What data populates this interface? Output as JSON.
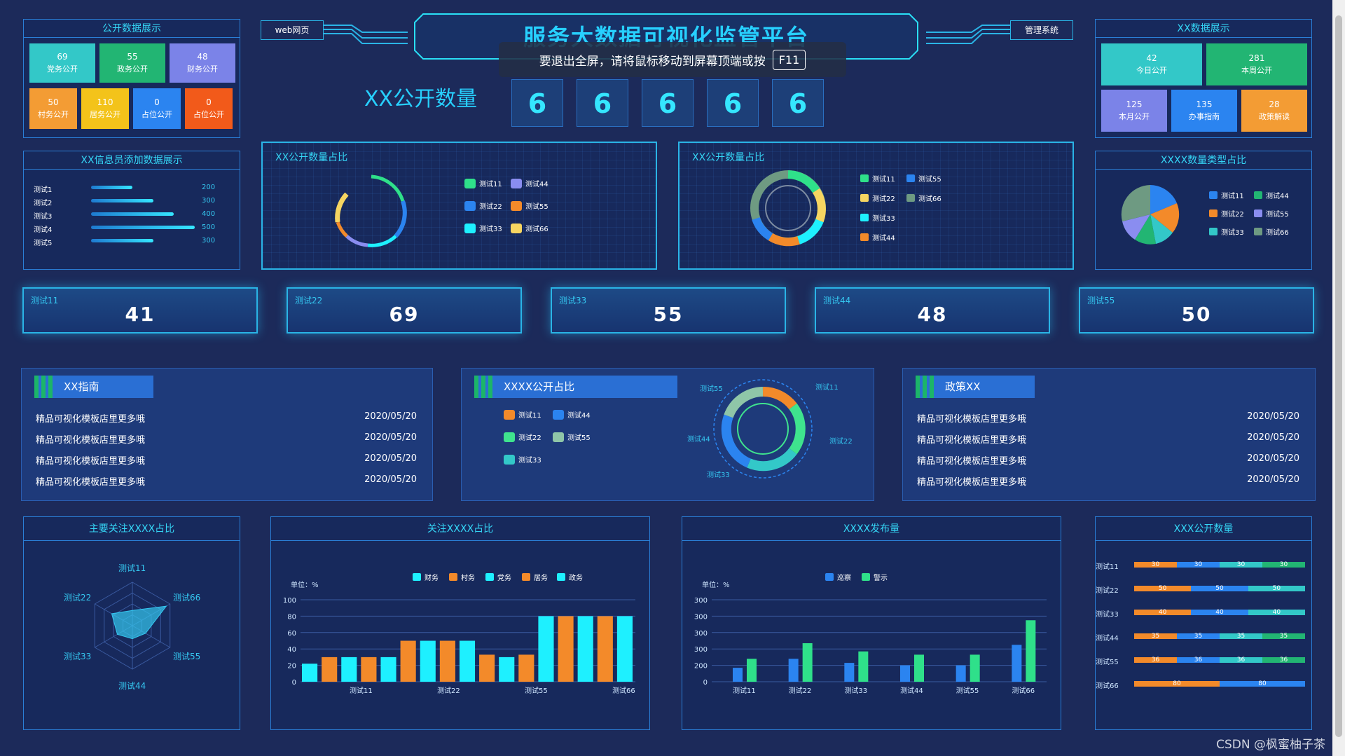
{
  "header": {
    "title": "服务大数据可视化监管平台",
    "left_link": "web网页",
    "right_link": "管理系统",
    "fullscreen_notice": "要退出全屏，请将鼠标移动到屏幕顶端或按",
    "fullscreen_key": "F11"
  },
  "public_count": {
    "label": "XX公开数量",
    "digits": [
      "6",
      "6",
      "6",
      "6",
      "6"
    ]
  },
  "public_data_panel": {
    "title": "公开数据展示",
    "tiles": [
      {
        "value": "69",
        "label": "党务公开",
        "color": "#33c8c8"
      },
      {
        "value": "55",
        "label": "政务公开",
        "color": "#22b573"
      },
      {
        "value": "48",
        "label": "财务公开",
        "color": "#7b83e8"
      },
      {
        "value": "50",
        "label": "村务公开",
        "color": "#f39c34"
      },
      {
        "value": "110",
        "label": "居务公开",
        "color": "#f3c31a"
      },
      {
        "value": "0",
        "label": "占位公开",
        "color": "#2b84f0"
      },
      {
        "value": "0",
        "label": "占位公开",
        "color": "#f25a1a"
      }
    ]
  },
  "xx_data_panel": {
    "title": "XX数据展示",
    "tiles": [
      {
        "value": "42",
        "label": "今日公开",
        "color": "#33c8c8"
      },
      {
        "value": "281",
        "label": "本周公开",
        "color": "#22b573"
      },
      {
        "value": "125",
        "label": "本月公开",
        "color": "#7b83e8"
      },
      {
        "value": "135",
        "label": "办事指南",
        "color": "#2b84f0"
      },
      {
        "value": "28",
        "label": "政策解读",
        "color": "#f39c34"
      }
    ]
  },
  "admin_panel": {
    "title": "XX信息员添加数据展示",
    "rows": [
      {
        "name": "测试1",
        "value": "200",
        "fraction": 0.4
      },
      {
        "name": "测试2",
        "value": "300",
        "fraction": 0.6
      },
      {
        "name": "测试3",
        "value": "400",
        "fraction": 0.8
      },
      {
        "name": "测试4",
        "value": "500",
        "fraction": 1.0
      },
      {
        "name": "测试5",
        "value": "300",
        "fraction": 0.6
      }
    ]
  },
  "ratio_panel_1": {
    "title": "XX公开数量占比",
    "legend": [
      {
        "name": "测试11",
        "color": "#2fe08a"
      },
      {
        "name": "测试44",
        "color": "#8a8df0"
      },
      {
        "name": "测试22",
        "color": "#2b84f0"
      },
      {
        "name": "测试55",
        "color": "#f38a2a"
      },
      {
        "name": "测试33",
        "color": "#1ef0ff"
      },
      {
        "name": "测试66",
        "color": "#f6d561"
      }
    ]
  },
  "ratio_panel_2": {
    "title": "XX公开数量占比",
    "legend": [
      {
        "name": "测试11",
        "color": "#2fe08a"
      },
      {
        "name": "测试55",
        "color": "#2b84f0"
      },
      {
        "name": "测试22",
        "color": "#f6d561"
      },
      {
        "name": "测试66",
        "color": "#6e9a82"
      },
      {
        "name": "测试33",
        "color": "#1ef0ff"
      },
      {
        "name": "测试44",
        "color": "#f38a2a"
      }
    ]
  },
  "type_panel": {
    "title": "XXXX数量类型占比",
    "legend": [
      {
        "name": "测试11",
        "color": "#2b84f0"
      },
      {
        "name": "测试44",
        "color": "#22b573"
      },
      {
        "name": "测试22",
        "color": "#f38a2a"
      },
      {
        "name": "测试55",
        "color": "#8a8df0"
      },
      {
        "name": "测试33",
        "color": "#33c8c8"
      },
      {
        "name": "测试66",
        "color": "#6e9a82"
      }
    ]
  },
  "stats": [
    {
      "label": "测试11",
      "value": "41"
    },
    {
      "label": "测试22",
      "value": "69"
    },
    {
      "label": "测试33",
      "value": "55"
    },
    {
      "label": "测试44",
      "value": "48"
    },
    {
      "label": "测试55",
      "value": "50"
    }
  ],
  "guide_panel": {
    "title": "XX指南",
    "rows": [
      {
        "text": "精品可视化模板店里更多哦",
        "date": "2020/05/20"
      },
      {
        "text": "精品可视化模板店里更多哦",
        "date": "2020/05/20"
      },
      {
        "text": "精品可视化模板店里更多哦",
        "date": "2020/05/20"
      },
      {
        "text": "精品可视化模板店里更多哦",
        "date": "2020/05/20"
      }
    ]
  },
  "center_ratio_panel": {
    "title": "XXXX公开占比",
    "legend": [
      {
        "name": "测试11",
        "color": "#f38a2a"
      },
      {
        "name": "测试44",
        "color": "#2b84f0"
      },
      {
        "name": "测试22",
        "color": "#3fe38e"
      },
      {
        "name": "测试55",
        "color": "#8fc6a8"
      },
      {
        "name": "测试33",
        "color": "#33c8c8"
      }
    ],
    "ring_labels": [
      "测试55",
      "测试11",
      "测试44",
      "测试22",
      "测试33"
    ]
  },
  "policy_panel": {
    "title": "政策XX",
    "rows": [
      {
        "text": "精品可视化模板店里更多哦",
        "date": "2020/05/20"
      },
      {
        "text": "精品可视化模板店里更多哦",
        "date": "2020/05/20"
      },
      {
        "text": "精品可视化模板店里更多哦",
        "date": "2020/05/20"
      },
      {
        "text": "精品可视化模板店里更多哦",
        "date": "2020/05/20"
      }
    ]
  },
  "radar_panel": {
    "title": "主要关注XXXX占比",
    "axes": [
      "测试11",
      "测试66",
      "测试55",
      "测试44",
      "测试33",
      "测试22"
    ],
    "values": [
      0.35,
      0.9,
      0.35,
      0.3,
      0.4,
      0.55
    ]
  },
  "bar_panel_1": {
    "title": "关注XXXX占比",
    "unit": "单位：%",
    "legend": [
      {
        "name": "财务",
        "color": "#1ef0ff"
      },
      {
        "name": "村务",
        "color": "#f38a2a"
      },
      {
        "name": "党务",
        "color": "#1ef0ff"
      },
      {
        "name": "居务",
        "color": "#f38a2a"
      },
      {
        "name": "政务",
        "color": "#1ef0ff"
      }
    ],
    "y_ticks": [
      "0",
      "20",
      "40",
      "60",
      "80",
      "100"
    ],
    "x_labels": [
      "测试11",
      "测试22",
      "测试55",
      "测试66"
    ],
    "values": [
      22,
      30,
      30,
      30,
      30,
      50,
      50,
      50,
      50,
      33,
      30,
      33,
      80,
      80,
      80,
      80,
      80
    ]
  },
  "bar_panel_2": {
    "title": "XXXX发布量",
    "unit": "单位：%",
    "legend": [
      {
        "name": "巡察",
        "color": "#2b84f0"
      },
      {
        "name": "警示",
        "color": "#2fe08a"
      }
    ],
    "y_ticks": [
      "0",
      "200",
      "300",
      "300",
      "300",
      "300"
    ],
    "x_labels": [
      "测试11",
      "测试22",
      "测试33",
      "测试44",
      "测试55",
      "测试66"
    ],
    "series_a": [
      0.17,
      0.28,
      0.23,
      0.2,
      0.2,
      0.45
    ],
    "series_b": [
      0.28,
      0.47,
      0.37,
      0.33,
      0.33,
      0.75
    ]
  },
  "stack_panel": {
    "title": "XXX公开数量",
    "rows": [
      {
        "name": "测试11",
        "segments": [
          "30",
          "30",
          "30",
          "30"
        ]
      },
      {
        "name": "测试22",
        "segments": [
          "50",
          "50",
          "50"
        ]
      },
      {
        "name": "测试33",
        "segments": [
          "40",
          "40",
          "40"
        ]
      },
      {
        "name": "测试44",
        "segments": [
          "35",
          "35",
          "35",
          "35"
        ]
      },
      {
        "name": "测试55",
        "segments": [
          "36",
          "36",
          "36",
          "36"
        ]
      },
      {
        "name": "测试66",
        "segments": [
          "80",
          "80"
        ]
      }
    ]
  },
  "watermark": "CSDN @枫蜜柚子茶"
}
